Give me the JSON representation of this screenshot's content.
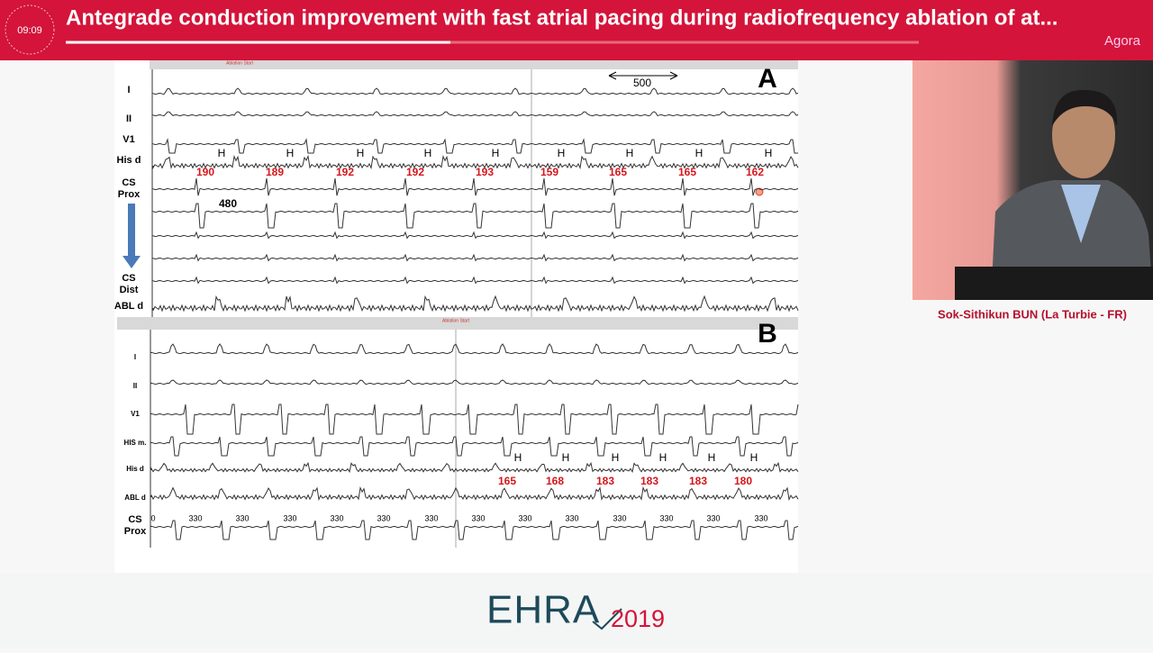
{
  "header": {
    "timer": "09:09",
    "title": "Antegrade conduction improvement with fast atrial pacing during radiofrequency ablation of at...",
    "channel": "Agora"
  },
  "speaker": {
    "name": "Sok-Sithikun BUN (La Turbie - FR)"
  },
  "slide": {
    "panel_a": {
      "letter": "A",
      "ablation_marker": "Ablation Start",
      "scale": "500",
      "cycle": "480",
      "leads": [
        {
          "lines": [
            "I"
          ]
        },
        {
          "lines": [
            "II"
          ]
        },
        {
          "lines": [
            "V1"
          ]
        },
        {
          "lines": [
            "His d"
          ]
        },
        {
          "lines": [
            "CS",
            "Prox"
          ]
        },
        {
          "lines": [
            "CS",
            "Dist"
          ]
        },
        {
          "lines": [
            "ABL d"
          ]
        }
      ],
      "his_markers": [
        "H",
        "H",
        "H",
        "H",
        "H",
        "H",
        "H",
        "H",
        "H"
      ],
      "intervals": [
        "190",
        "189",
        "192",
        "192",
        "193",
        "159",
        "165",
        "165",
        "162"
      ]
    },
    "panel_b": {
      "letter": "B",
      "ablation_marker": "Ablation Start",
      "leads": [
        {
          "lines": [
            "I"
          ]
        },
        {
          "lines": [
            "II"
          ]
        },
        {
          "lines": [
            "V1"
          ]
        },
        {
          "lines": [
            "HIS m."
          ]
        },
        {
          "lines": [
            "His d"
          ]
        },
        {
          "lines": [
            "ABL d"
          ]
        },
        {
          "lines": [
            "CS",
            "Prox"
          ]
        }
      ],
      "his_markers": [
        "H",
        "H",
        "H",
        "H",
        "H",
        "H"
      ],
      "intervals": [
        "165",
        "168",
        "183",
        "183",
        "183",
        "180"
      ],
      "cs_intervals": [
        "0",
        "330",
        "330",
        "330",
        "330",
        "330",
        "330",
        "330",
        "330",
        "330",
        "330",
        "330",
        "330",
        "330"
      ]
    }
  },
  "footer": {
    "brand": "EHRA",
    "year": "2019"
  }
}
